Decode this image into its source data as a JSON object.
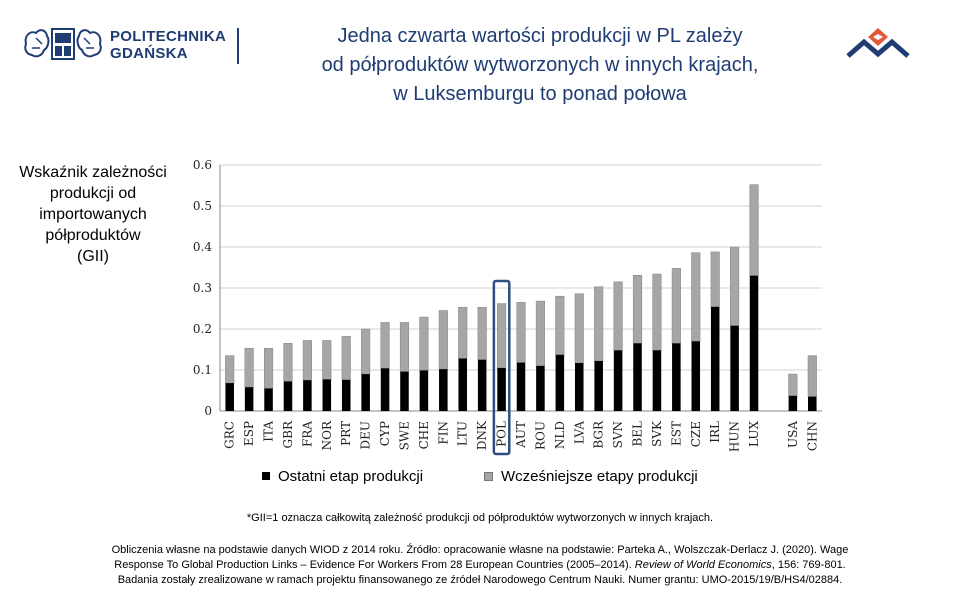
{
  "header": {
    "logo_line1": "POLITECHNIKA",
    "logo_line2": "GDAŃSKA",
    "title_lines": [
      "Jedna czwarta wartości produkcji w PL zależy",
      "od półproduktów wytworzonych w innych krajach,",
      "w Luksemburgu to ponad połowa"
    ]
  },
  "y_axis_label_lines": [
    "Wskaźnik zależności",
    "produkcji od",
    "importowanych",
    "półproduktów",
    "(GII)"
  ],
  "colors": {
    "brand": "#1f3c73",
    "final_stage": "#000000",
    "earlier_stages": "#a6a6a6",
    "highlight": "#2e4e7e",
    "logo_red": "#e05a3a"
  },
  "chart_data": {
    "type": "bar",
    "stacked": true,
    "categories": [
      "GRC",
      "ESP",
      "ITA",
      "GBR",
      "FRA",
      "NOR",
      "PRT",
      "DEU",
      "CYP",
      "SWE",
      "CHE",
      "FIN",
      "LTU",
      "DNK",
      "POL",
      "AUT",
      "ROU",
      "NLD",
      "LVA",
      "BGR",
      "SVN",
      "BEL",
      "SVK",
      "EST",
      "CZE",
      "IRL",
      "HUN",
      "LUX",
      "USA",
      "CHN"
    ],
    "group_gap_before": "USA",
    "highlighted_category": "POL",
    "series": [
      {
        "name": "Ostatni etap produkcji",
        "values": [
          0.068,
          0.058,
          0.055,
          0.072,
          0.075,
          0.077,
          0.076,
          0.09,
          0.104,
          0.096,
          0.099,
          0.102,
          0.128,
          0.125,
          0.105,
          0.118,
          0.11,
          0.137,
          0.117,
          0.122,
          0.148,
          0.165,
          0.148,
          0.165,
          0.17,
          0.254,
          0.208,
          0.33,
          0.037,
          0.035
        ]
      },
      {
        "name": "Wcześniejsze etapy produkcji",
        "values": [
          0.067,
          0.095,
          0.098,
          0.093,
          0.097,
          0.095,
          0.106,
          0.11,
          0.112,
          0.12,
          0.13,
          0.143,
          0.125,
          0.128,
          0.157,
          0.147,
          0.158,
          0.143,
          0.169,
          0.181,
          0.167,
          0.166,
          0.186,
          0.183,
          0.216,
          0.134,
          0.192,
          0.222,
          0.053,
          0.1
        ]
      }
    ],
    "ylim": [
      0,
      0.6
    ],
    "yticks": [
      "0",
      "0.1",
      "0.2",
      "0.3",
      "0.4",
      "0.5",
      "0.6"
    ],
    "grid": true,
    "legend_position": "bottom"
  },
  "footnote": "*GII=1 oznacza całkowitą zależność produkcji od półproduktów wytworzonych w innych krajach.",
  "source": {
    "line1": "Obliczenia własne na podstawie danych WIOD z 2014 roku. Źródło: opracowanie własne na podstawie: Parteka A., Wolszczak-Derlacz J. (2020). Wage",
    "line2_pre": "Response To Global Production Links – Evidence For Workers From 28 European Countries (2005–2014). ",
    "line2_journal": "Review of World Economics",
    "line2_post": ", 156: 769-801.",
    "line3": "Badania zostały zrealizowane w ramach projektu finansowanego ze źródeł Narodowego Centrum Nauki. Numer grantu: UMO-2015/19/B/HS4/02884."
  }
}
